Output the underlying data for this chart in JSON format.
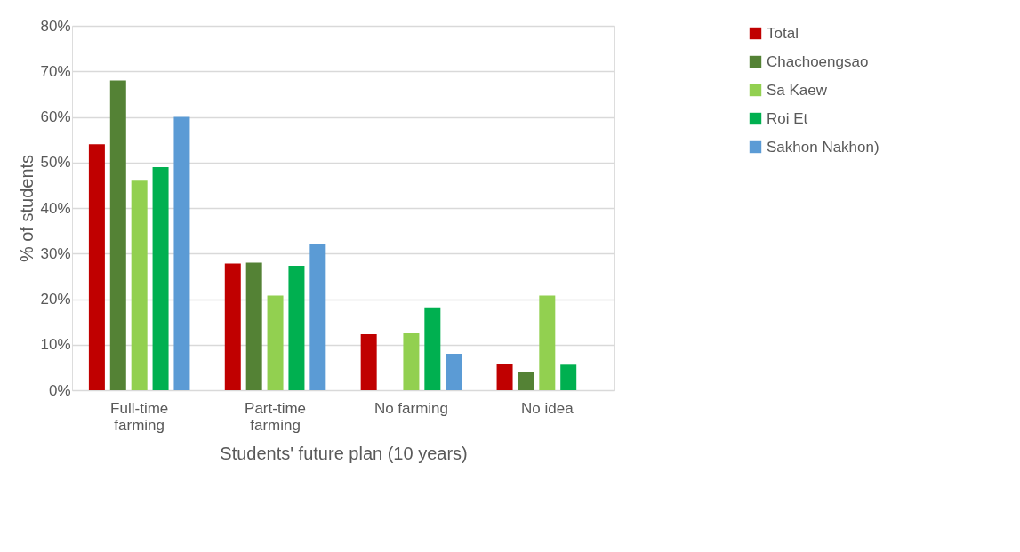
{
  "chart_data": {
    "type": "bar",
    "xlabel": "Students' future plan (10 years)",
    "ylabel": "% of students",
    "categories": [
      "Full-time farming",
      "Part-time farming",
      "No farming",
      "No idea"
    ],
    "series": [
      {
        "name": "Total",
        "color": "#c00000",
        "values": [
          54,
          27.8,
          12.3,
          5.8
        ]
      },
      {
        "name": "Chachoengsao",
        "color": "#548235",
        "values": [
          68,
          28,
          null,
          4
        ]
      },
      {
        "name": "Sa Kaew",
        "color": "#92d050",
        "values": [
          46,
          20.8,
          12.5,
          20.8
        ]
      },
      {
        "name": "Roi Et",
        "color": "#00b050",
        "values": [
          49,
          27.3,
          18.2,
          5.6
        ]
      },
      {
        "name": "Sakhon Nakhon)",
        "color": "#5b9bd5",
        "values": [
          60,
          32,
          8,
          null
        ]
      }
    ],
    "ylim": [
      0,
      80
    ],
    "yticks": [
      {
        "value": 0,
        "label": "0%"
      },
      {
        "value": 10,
        "label": "10%"
      },
      {
        "value": 20,
        "label": "20%"
      },
      {
        "value": 30,
        "label": "30%"
      },
      {
        "value": 40,
        "label": "40%"
      },
      {
        "value": 50,
        "label": "50%"
      },
      {
        "value": 60,
        "label": "60%"
      },
      {
        "value": 70,
        "label": "70%"
      },
      {
        "value": 80,
        "label": "80%"
      }
    ],
    "grid": "y",
    "legend": "right"
  }
}
